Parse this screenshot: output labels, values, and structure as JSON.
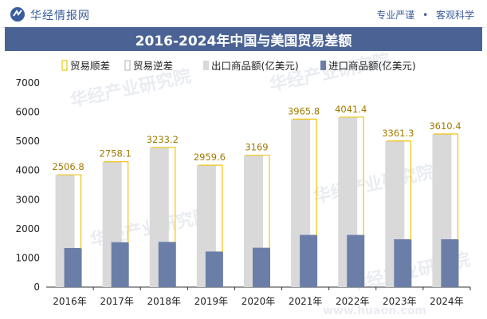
{
  "header": {
    "brand": "华经情报网",
    "slogan_left": "专业严谨",
    "slogan_sep": "•",
    "slogan_right": "客观科学"
  },
  "chart_data": {
    "type": "bar",
    "title": "2016-2024年中国与美国贸易差额",
    "categories": [
      "2016年",
      "2017年",
      "2018年",
      "2019年",
      "2020年",
      "2021年",
      "2022年",
      "2023年",
      "2024年"
    ],
    "legend": [
      "贸易顺差",
      "贸易逆差",
      "出口商品额(亿美元)",
      "进口商品额(亿美元)"
    ],
    "series": [
      {
        "name": "出口商品额(亿美元)",
        "color": "#d9d9d9",
        "values": [
          3850,
          4300,
          4790,
          4180,
          4520,
          5760,
          5830,
          5010,
          5250
        ]
      },
      {
        "name": "进口商品额(亿美元)",
        "color": "#6b7ea8",
        "values": [
          1340,
          1540,
          1550,
          1220,
          1350,
          1790,
          1790,
          1640,
          1640
        ]
      }
    ],
    "balance": {
      "name": "贸易顺差",
      "values": [
        2506.8,
        2758.1,
        3233.2,
        2959.6,
        3169,
        3965.8,
        4041.4,
        3361.3,
        3610.4
      ],
      "labels": [
        "2506.8",
        "2758.1",
        "3233.2",
        "2959.6",
        "3169",
        "3965.8",
        "4041.4",
        "3361.3",
        "3610.4"
      ],
      "color": "#f2c40f"
    },
    "yticks": [
      0,
      1000,
      2000,
      3000,
      4000,
      5000,
      6000,
      7000
    ],
    "ylim": [
      0,
      7000
    ],
    "grid": false,
    "legend_position": "top"
  },
  "watermarks": [
    "华经产业研究院",
    "华经产业研究院",
    "华经产业研究院",
    "华经产业研究院",
    "华经产业研究院"
  ],
  "footer_site": "www.huaon.com"
}
